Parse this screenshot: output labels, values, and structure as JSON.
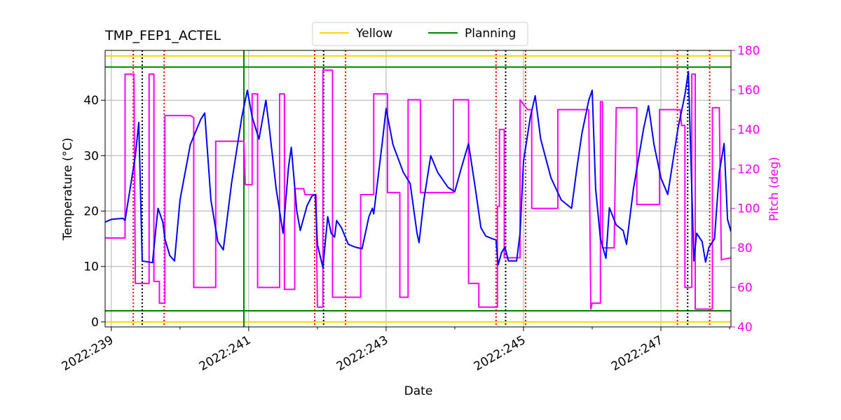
{
  "chart_data": {
    "type": "line",
    "title": "TMP_FEP1_ACTEL",
    "xlabel": "Date",
    "ylabel": "Temperature (°C)",
    "y2label": "Pitch (deg)",
    "y2color": "#ff00ff",
    "xlim": [
      238.91,
      248.02
    ],
    "ylim": [
      -0.9,
      49
    ],
    "y2lim": [
      40,
      180
    ],
    "xticks": [
      {
        "value": 239,
        "label": "2022:239"
      },
      {
        "value": 241,
        "label": "2022:241"
      },
      {
        "value": 243,
        "label": "2022:243"
      },
      {
        "value": 245,
        "label": "2022:245"
      },
      {
        "value": 247,
        "label": "2022:247"
      }
    ],
    "xminorticks": [
      240,
      242,
      244,
      246,
      248
    ],
    "yticks": [
      0,
      10,
      20,
      30,
      40
    ],
    "y2ticks": [
      40,
      60,
      80,
      100,
      120,
      140,
      160,
      180
    ],
    "grid": true,
    "legend": "upper center",
    "limit_lines": [
      {
        "name": "Yellow",
        "color": "#ffd700",
        "values": [
          0,
          48
        ]
      },
      {
        "name": "Planning",
        "color": "#008000",
        "values": [
          2,
          46
        ]
      }
    ],
    "vlines": [
      {
        "color": "#008000",
        "style": "solid",
        "x": [
          240.93
        ]
      },
      {
        "color": "#ff0000",
        "style": "dotted",
        "x": [
          239.32,
          239.77,
          241.96,
          242.41,
          244.6,
          245.03,
          247.24,
          247.71
        ]
      },
      {
        "color": "#000000",
        "style": "dotted",
        "x": [
          239.45,
          242.09,
          244.74,
          247.39
        ]
      }
    ],
    "series": [
      {
        "color": "#ff00ff",
        "axis": "y2",
        "x": [
          238.91,
          239.2,
          239.2,
          239.33,
          239.35,
          239.55,
          239.55,
          239.62,
          239.62,
          239.7,
          239.7,
          239.78,
          239.78,
          240.15,
          240.2,
          240.2,
          240.52,
          240.52,
          240.93,
          240.95,
          241.05,
          241.05,
          241.13,
          241.13,
          241.45,
          241.45,
          241.52,
          241.52,
          241.67,
          241.67,
          241.8,
          241.82,
          241.98,
          242.0,
          242.08,
          242.08,
          242.22,
          242.22,
          242.63,
          242.63,
          242.82,
          242.82,
          243.02,
          243.02,
          243.2,
          243.2,
          243.32,
          243.32,
          243.5,
          243.5,
          243.98,
          243.98,
          244.2,
          244.2,
          244.35,
          244.35,
          244.62,
          244.62,
          244.65,
          244.65,
          244.72,
          244.72,
          244.95,
          244.95,
          245.06,
          245.12,
          245.12,
          245.5,
          245.5,
          245.95,
          245.98,
          246.0,
          246.12,
          246.12,
          246.15,
          246.15,
          246.32,
          246.35,
          246.65,
          246.65,
          246.98,
          246.98,
          247.28,
          247.3,
          247.35,
          247.35,
          247.45,
          247.45,
          247.5,
          247.5,
          247.75,
          247.75,
          247.85,
          247.88,
          248.02
        ],
        "values": [
          85,
          85,
          168,
          168,
          62,
          62,
          168,
          168,
          63,
          63,
          52,
          52,
          147,
          147,
          146,
          60,
          60,
          134,
          134,
          112,
          112,
          158,
          158,
          60,
          60,
          158,
          158,
          59,
          59,
          110,
          110,
          107,
          107,
          50,
          50,
          170,
          170,
          55,
          55,
          107,
          107,
          158,
          158,
          108,
          108,
          55,
          55,
          155,
          155,
          108,
          108,
          155,
          155,
          62,
          62,
          50,
          50,
          101,
          101,
          140,
          140,
          75,
          75,
          155,
          150,
          150,
          100,
          100,
          150,
          150,
          49,
          52,
          52,
          154,
          154,
          80,
          80,
          151,
          151,
          102,
          102,
          150,
          150,
          142,
          142,
          60,
          60,
          168,
          168,
          49,
          49,
          151,
          151,
          74,
          75
        ]
      },
      {
        "color": "#0000ff",
        "x": [
          238.91,
          239.0,
          239.17,
          239.2,
          239.35,
          239.4,
          239.45,
          239.6,
          239.65,
          239.68,
          239.75,
          239.78,
          239.85,
          239.92,
          240.0,
          240.15,
          240.3,
          240.36,
          240.45,
          240.55,
          240.63,
          240.75,
          240.9,
          240.98,
          241.05,
          241.15,
          241.25,
          241.3,
          241.4,
          241.5,
          241.58,
          241.62,
          241.7,
          241.75,
          241.85,
          241.92,
          241.97,
          242.0,
          242.08,
          242.15,
          242.2,
          242.25,
          242.28,
          242.35,
          242.45,
          242.55,
          242.65,
          242.75,
          242.8,
          242.82,
          242.95,
          243.0,
          243.1,
          243.25,
          243.35,
          243.45,
          243.48,
          243.55,
          243.65,
          243.75,
          243.9,
          244.0,
          244.1,
          244.2,
          244.3,
          244.38,
          244.45,
          244.55,
          244.6,
          244.63,
          244.68,
          244.73,
          244.78,
          244.9,
          244.95,
          245.0,
          245.1,
          245.17,
          245.25,
          245.4,
          245.55,
          245.7,
          245.78,
          245.85,
          245.95,
          246.0,
          246.05,
          246.12,
          246.2,
          246.25,
          246.35,
          246.45,
          246.5,
          246.6,
          246.75,
          246.82,
          246.9,
          247.0,
          247.1,
          247.25,
          247.35,
          247.4,
          247.48,
          247.52,
          247.6,
          247.65,
          247.7,
          247.78,
          247.85,
          247.92,
          247.97,
          248.02
        ],
        "values": [
          18,
          18.5,
          18.7,
          18.3,
          30,
          36,
          11,
          10.7,
          17,
          20.5,
          18,
          15,
          12,
          11,
          22,
          32,
          36.5,
          37.7,
          22,
          14.5,
          13,
          25,
          37,
          41.8,
          37,
          33,
          40,
          35,
          24,
          16,
          28,
          31.5,
          20,
          16.5,
          21,
          22.7,
          23,
          14,
          9.8,
          19,
          16,
          15.3,
          18.3,
          17,
          14,
          13.5,
          13.2,
          19,
          20.5,
          19.5,
          33,
          38.5,
          32,
          27,
          25,
          16,
          14.3,
          22,
          30,
          27,
          24.3,
          23.5,
          28,
          32.2,
          24,
          17,
          15.5,
          15,
          14.8,
          10.3,
          12.5,
          13.5,
          11,
          11,
          16,
          29,
          37,
          40.8,
          33,
          26,
          22,
          20.5,
          28,
          34,
          40,
          41.8,
          24,
          15,
          11.5,
          20.6,
          17.5,
          16.5,
          14,
          24,
          35,
          39,
          32,
          26,
          23,
          35,
          41,
          45.2,
          11,
          16,
          14.5,
          10.8,
          13.5,
          15,
          27,
          32.2,
          18.5,
          16.3
        ]
      }
    ]
  }
}
